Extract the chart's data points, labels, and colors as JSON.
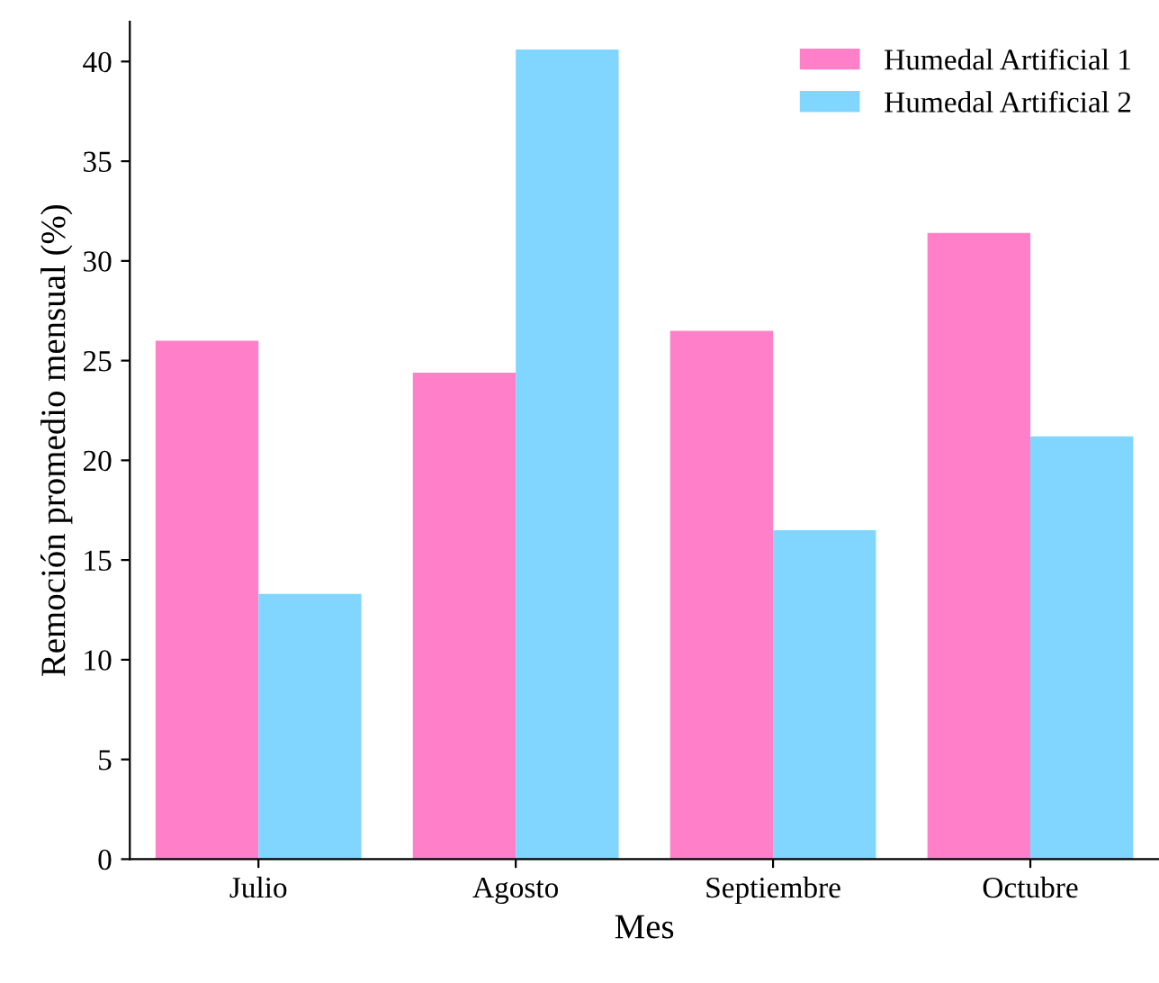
{
  "chart_data": {
    "type": "bar",
    "xlabel": "Mes",
    "ylabel": "Remoción promedio mensual (%)",
    "categories": [
      "Julio",
      "Agosto",
      "Septiembre",
      "Octubre"
    ],
    "series": [
      {
        "name": "Humedal Artificial 1",
        "color": "#ff80c8",
        "values": [
          26.0,
          24.4,
          26.5,
          31.4
        ]
      },
      {
        "name": "Humedal Artificial 2",
        "color": "#80d6ff",
        "values": [
          13.3,
          40.6,
          16.5,
          21.2
        ]
      }
    ],
    "ylim": [
      0,
      42
    ],
    "yticks": [
      0,
      5,
      10,
      15,
      20,
      25,
      30,
      35,
      40
    ],
    "grid": false,
    "legend": "top right"
  }
}
